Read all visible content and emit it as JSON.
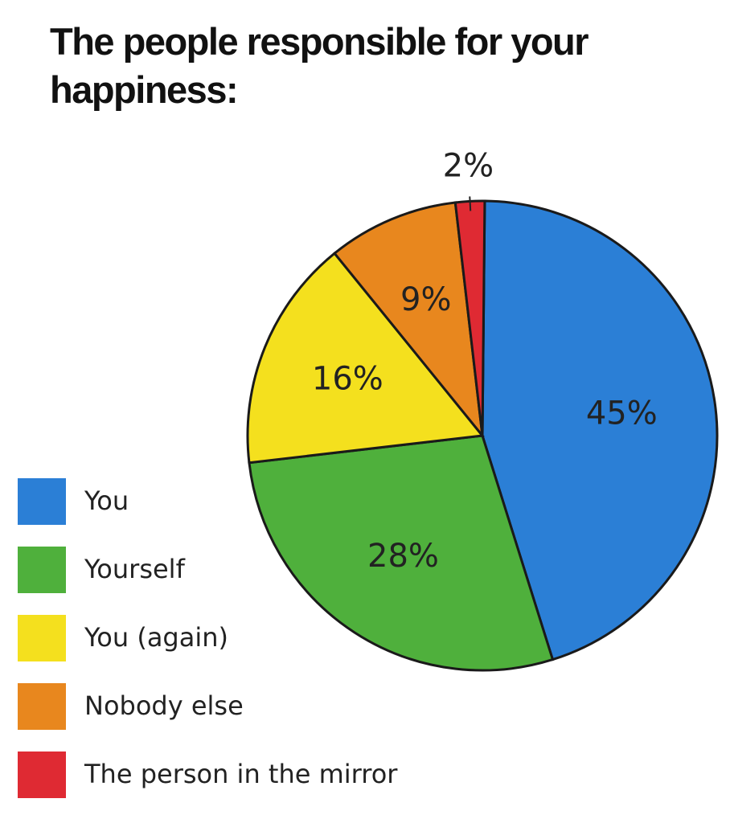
{
  "chart_data": {
    "type": "pie",
    "title": "The people responsible for your happiness:",
    "categories": [
      "You",
      "Yourself",
      "You (again)",
      "Nobody else",
      "The person in the mirror"
    ],
    "values": [
      45,
      28,
      16,
      9,
      2
    ],
    "value_labels": [
      "45%",
      "28%",
      "16%",
      "9%",
      "2%"
    ],
    "colors": [
      "#2b7fd6",
      "#4fb03c",
      "#f4e01e",
      "#e8871e",
      "#df2a33"
    ],
    "legend": "left"
  }
}
